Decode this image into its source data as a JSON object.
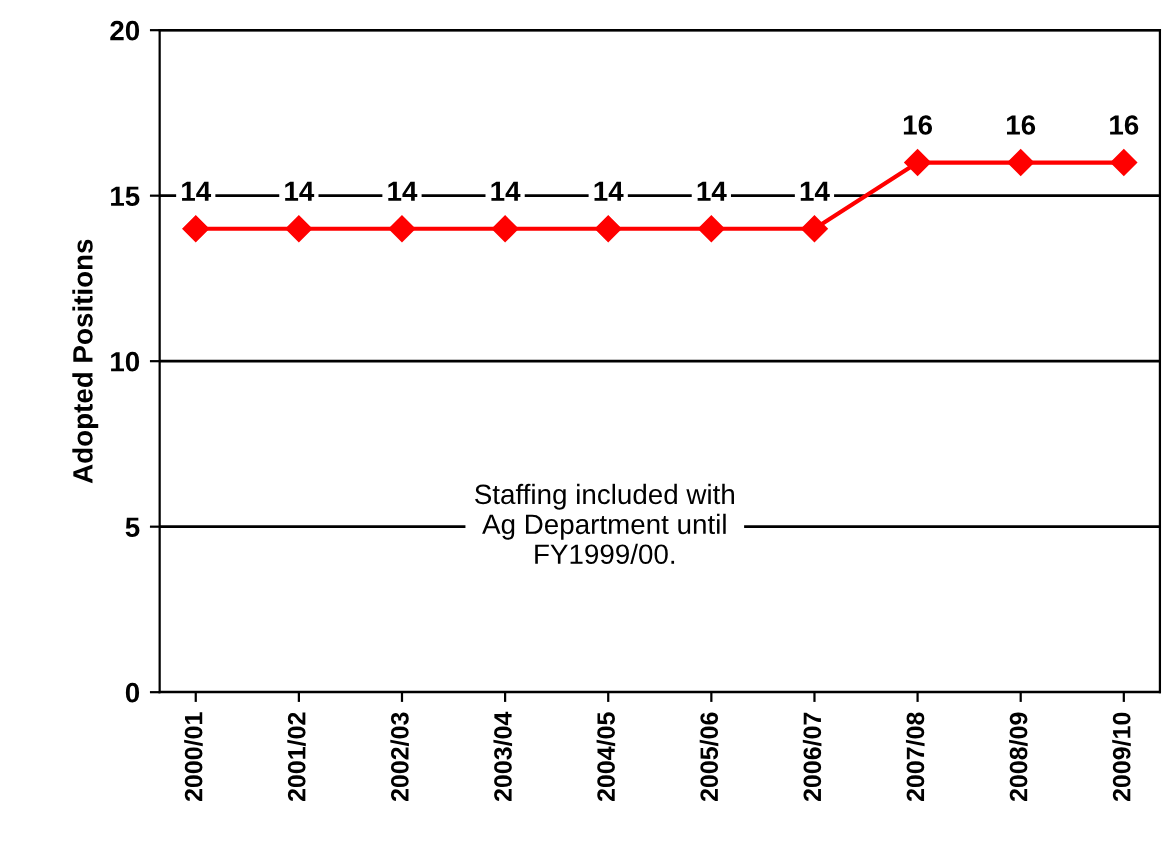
{
  "chart_data": {
    "type": "line",
    "ylabel": "Adopted Positions",
    "categories": [
      "2000/01",
      "2001/02",
      "2002/03",
      "2003/04",
      "2004/05",
      "2005/06",
      "2006/07",
      "2007/08",
      "2008/09",
      "2009/10"
    ],
    "series": [
      {
        "color": "#ff0000",
        "values": [
          14,
          14,
          14,
          14,
          14,
          14,
          14,
          16,
          16,
          16
        ]
      }
    ],
    "ylim": [
      0,
      20
    ],
    "yticks": [
      0,
      5,
      10,
      15,
      20
    ],
    "grid": "y",
    "marker": "diamond",
    "line_style": "solid",
    "data_labels": true,
    "legend": false,
    "annotations": [
      "Staffing included with\nAg Department until\nFY1999/00."
    ]
  }
}
